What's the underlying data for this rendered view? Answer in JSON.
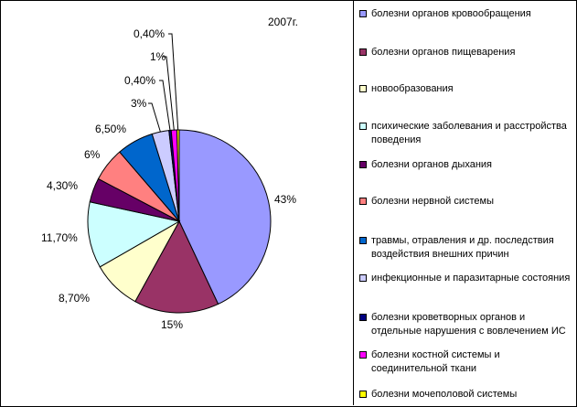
{
  "chart_data": {
    "type": "pie",
    "title": "2007г.",
    "slices": [
      {
        "label": "болезни органов кровообращения",
        "value": 43,
        "value_label": "43%",
        "color": "#9999FF"
      },
      {
        "label": "болезни органов пищеварения",
        "value": 15,
        "value_label": "15%",
        "color": "#993366"
      },
      {
        "label": "новообразования",
        "value": 8.7,
        "value_label": "8,70%",
        "color": "#FFFFCC"
      },
      {
        "label": "психические заболевания и расстройства поведения",
        "value": 11.7,
        "value_label": "11,70%",
        "color": "#CCFFFF"
      },
      {
        "label": "болезни органов дыхания",
        "value": 4.3,
        "value_label": "4,30%",
        "color": "#660066"
      },
      {
        "label": "болезни нервной системы",
        "value": 6,
        "value_label": "6%",
        "color": "#FF8080"
      },
      {
        "label": "травмы, отравления и др. последствия воздействия внешних причин",
        "value": 6.5,
        "value_label": "6,50%",
        "color": "#0066CC"
      },
      {
        "label": "инфекционные и паразитарные состояния",
        "value": 3,
        "value_label": "3%",
        "color": "#CCCCFF"
      },
      {
        "label": "болезни кроветворных органов и отдельные нарушения с вовлечением ИС",
        "value": 0.4,
        "value_label": "0,40%",
        "color": "#000080"
      },
      {
        "label": "болезни костной системы и соединительной ткани",
        "value": 1,
        "value_label": "1%",
        "color": "#FF00FF"
      },
      {
        "label": "болезни мочеполовой системы",
        "value": 0.4,
        "value_label": "0,40%",
        "color": "#FFFF00"
      }
    ],
    "legend_position": "right"
  }
}
